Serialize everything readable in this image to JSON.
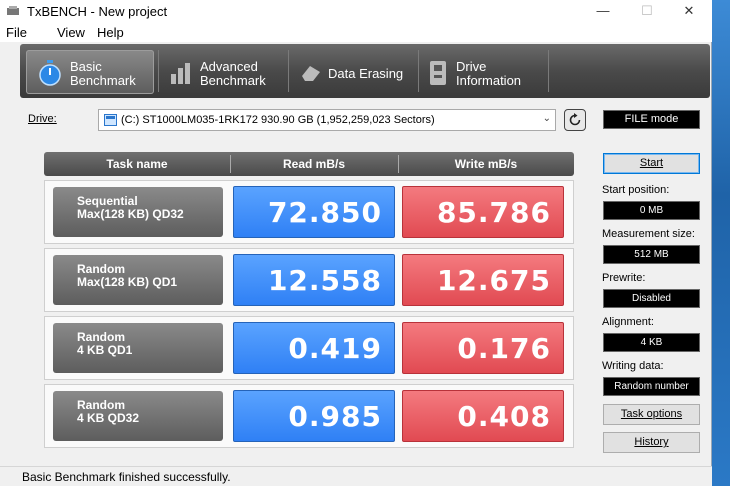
{
  "window": {
    "title": "TxBENCH - New project",
    "minimize": "—",
    "maximize": "☐",
    "close": "✕"
  },
  "menu": [
    "File",
    "View",
    "Help"
  ],
  "tabs": [
    {
      "line1": "Basic",
      "line2": "Benchmark",
      "icon": "stopwatch-icon"
    },
    {
      "line1": "Advanced",
      "line2": "Benchmark",
      "icon": "bar-chart-icon"
    },
    {
      "line1": "Data Erasing",
      "line2": "",
      "icon": "eraser-icon"
    },
    {
      "line1": "Drive",
      "line2": "Information",
      "icon": "drive-info-icon"
    }
  ],
  "drive": {
    "label": "Drive:",
    "selected": "(C:) ST1000LM035-1RK172  930.90 GB (1,952,259,023 Sectors)",
    "mode": "FILE mode"
  },
  "table": {
    "headers": [
      "Task name",
      "Read mB/s",
      "Write mB/s"
    ],
    "rows": [
      {
        "name1": "Sequential",
        "name2": "Max(128 KB) QD32",
        "read": "72.850",
        "write": "85.786"
      },
      {
        "name1": "Random",
        "name2": "Max(128 KB) QD1",
        "read": "12.558",
        "write": "12.675"
      },
      {
        "name1": "Random",
        "name2": "4 KB QD1",
        "read": "0.419",
        "write": "0.176"
      },
      {
        "name1": "Random",
        "name2": "4 KB QD32",
        "read": "0.985",
        "write": "0.408"
      }
    ]
  },
  "side": {
    "start": "Start",
    "start_position_label": "Start position:",
    "start_position": "0 MB",
    "measurement_size_label": "Measurement size:",
    "measurement_size": "512 MB",
    "prewrite_label": "Prewrite:",
    "prewrite": "Disabled",
    "alignment_label": "Alignment:",
    "alignment": "4 KB",
    "writing_data_label": "Writing data:",
    "writing_data": "Random number",
    "task_options": "Task options",
    "history": "History"
  },
  "status": "Basic Benchmark finished successfully.",
  "colors": {
    "read": "#2f80f5",
    "write": "#e14a52",
    "accent": "#1d6fb8"
  }
}
